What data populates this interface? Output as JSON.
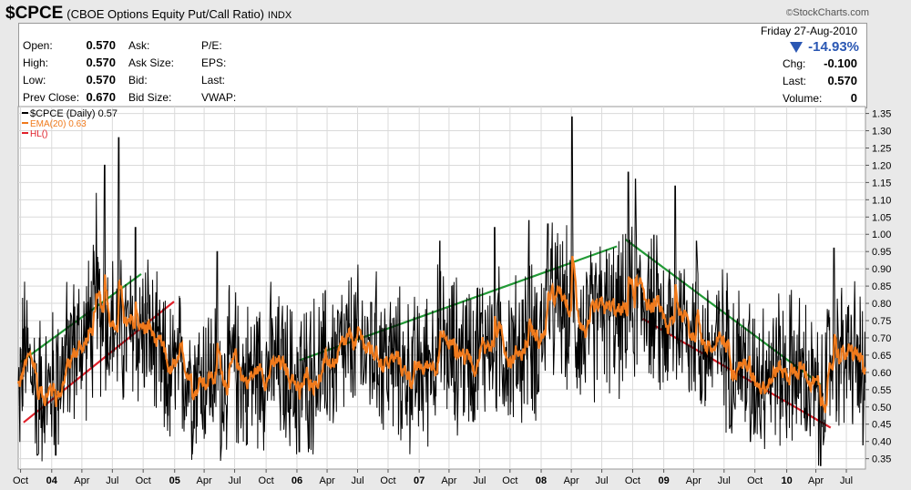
{
  "header": {
    "symbol": "$CPCE",
    "name": "(CBOE Options Equity Put/Call Ratio)",
    "exchange": "INDX",
    "brand": "StockCharts.com",
    "brand_mark": "©"
  },
  "quote": {
    "left": [
      {
        "label": "Open:",
        "value": "0.570"
      },
      {
        "label": "High:",
        "value": "0.570"
      },
      {
        "label": "Low:",
        "value": "0.570"
      },
      {
        "label": "Prev Close:",
        "value": "0.670"
      }
    ],
    "mid": [
      "Ask:",
      "Ask Size:",
      "Bid:",
      "Bid Size:"
    ],
    "fund": [
      "P/E:",
      "EPS:",
      "Last:",
      "VWAP:"
    ],
    "date": "Friday  27-Aug-2010",
    "pct_change": "-14.93%",
    "right": [
      {
        "label": "Chg:",
        "value": "-0.100"
      },
      {
        "label": "Last:",
        "value": "0.570"
      },
      {
        "label": "Volume:",
        "value": "0"
      }
    ]
  },
  "legend": [
    {
      "text": "$CPCE (Daily) 0.57",
      "color": "#000000"
    },
    {
      "text": "EMA(20) 0.63",
      "color": "#f07a1c"
    },
    {
      "text": "HL()",
      "color": "#e0202a"
    }
  ],
  "colors": {
    "price": "#000000",
    "ema": "#f07a1c",
    "hl_red": "#e0202a",
    "hl_green": "#229a36",
    "down": "#2a57b3"
  },
  "chart_data": {
    "type": "line",
    "y_ticks": [
      "0.35",
      "0.40",
      "0.45",
      "0.50",
      "0.55",
      "0.60",
      "0.65",
      "0.70",
      "0.75",
      "0.80",
      "0.85",
      "0.90",
      "0.95",
      "1.00",
      "1.05",
      "1.10",
      "1.15",
      "1.20",
      "1.25",
      "1.30",
      "1.35"
    ],
    "ylim": [
      0.32,
      1.37
    ],
    "x_range": [
      "2003-09-24",
      "2010-08-27"
    ],
    "x_ticks": [
      {
        "date": "2003-10-01",
        "label": "Oct",
        "bold": false
      },
      {
        "date": "2004-01-02",
        "label": "04",
        "bold": true
      },
      {
        "date": "2004-04-01",
        "label": "Apr",
        "bold": false
      },
      {
        "date": "2004-07-01",
        "label": "Jul",
        "bold": false
      },
      {
        "date": "2004-10-01",
        "label": "Oct",
        "bold": false
      },
      {
        "date": "2005-01-03",
        "label": "05",
        "bold": true
      },
      {
        "date": "2005-04-01",
        "label": "Apr",
        "bold": false
      },
      {
        "date": "2005-07-01",
        "label": "Jul",
        "bold": false
      },
      {
        "date": "2005-10-03",
        "label": "Oct",
        "bold": false
      },
      {
        "date": "2006-01-03",
        "label": "06",
        "bold": true
      },
      {
        "date": "2006-04-03",
        "label": "Apr",
        "bold": false
      },
      {
        "date": "2006-07-03",
        "label": "Jul",
        "bold": false
      },
      {
        "date": "2006-10-02",
        "label": "Oct",
        "bold": false
      },
      {
        "date": "2007-01-03",
        "label": "07",
        "bold": true
      },
      {
        "date": "2007-04-02",
        "label": "Apr",
        "bold": false
      },
      {
        "date": "2007-07-02",
        "label": "Jul",
        "bold": false
      },
      {
        "date": "2007-10-01",
        "label": "Oct",
        "bold": false
      },
      {
        "date": "2008-01-02",
        "label": "08",
        "bold": true
      },
      {
        "date": "2008-04-01",
        "label": "Apr",
        "bold": false
      },
      {
        "date": "2008-07-01",
        "label": "Jul",
        "bold": false
      },
      {
        "date": "2008-10-01",
        "label": "Oct",
        "bold": false
      },
      {
        "date": "2009-01-02",
        "label": "09",
        "bold": true
      },
      {
        "date": "2009-04-01",
        "label": "Apr",
        "bold": false
      },
      {
        "date": "2009-07-01",
        "label": "Jul",
        "bold": false
      },
      {
        "date": "2009-10-01",
        "label": "Oct",
        "bold": false
      },
      {
        "date": "2010-01-04",
        "label": "10",
        "bold": true
      },
      {
        "date": "2010-04-01",
        "label": "Apr",
        "bold": false
      },
      {
        "date": "2010-07-01",
        "label": "Jul",
        "bold": false
      }
    ],
    "ratio_anchors": [
      [
        "2003-09-24",
        0.52
      ],
      [
        "2003-10-10",
        0.66
      ],
      [
        "2003-11-15",
        0.58
      ],
      [
        "2003-12-20",
        0.54
      ],
      [
        "2004-01-25",
        0.6
      ],
      [
        "2004-03-01",
        0.66
      ],
      [
        "2004-04-10",
        0.7
      ],
      [
        "2004-05-20",
        0.77
      ],
      [
        "2004-06-25",
        0.73
      ],
      [
        "2004-08-01",
        0.7
      ],
      [
        "2004-09-05",
        0.71
      ],
      [
        "2004-10-10",
        0.73
      ],
      [
        "2004-11-15",
        0.62
      ],
      [
        "2004-12-20",
        0.58
      ],
      [
        "2005-01-25",
        0.62
      ],
      [
        "2005-03-01",
        0.58
      ],
      [
        "2005-04-10",
        0.61
      ],
      [
        "2005-05-20",
        0.56
      ],
      [
        "2005-06-25",
        0.62
      ],
      [
        "2005-08-01",
        0.58
      ],
      [
        "2005-09-05",
        0.61
      ],
      [
        "2005-10-10",
        0.62
      ],
      [
        "2005-11-15",
        0.6
      ],
      [
        "2005-12-20",
        0.58
      ],
      [
        "2006-01-25",
        0.58
      ],
      [
        "2006-03-01",
        0.6
      ],
      [
        "2006-04-10",
        0.63
      ],
      [
        "2006-05-20",
        0.66
      ],
      [
        "2006-06-25",
        0.68
      ],
      [
        "2006-08-01",
        0.66
      ],
      [
        "2006-09-05",
        0.65
      ],
      [
        "2006-10-10",
        0.63
      ],
      [
        "2006-11-15",
        0.6
      ],
      [
        "2006-12-20",
        0.59
      ],
      [
        "2007-01-25",
        0.62
      ],
      [
        "2007-03-01",
        0.69
      ],
      [
        "2007-04-10",
        0.66
      ],
      [
        "2007-05-20",
        0.65
      ],
      [
        "2007-06-25",
        0.67
      ],
      [
        "2007-08-01",
        0.7
      ],
      [
        "2007-09-05",
        0.68
      ],
      [
        "2007-10-10",
        0.64
      ],
      [
        "2007-11-15",
        0.7
      ],
      [
        "2007-12-20",
        0.69
      ],
      [
        "2008-01-25",
        0.79
      ],
      [
        "2008-03-01",
        0.8
      ],
      [
        "2008-04-10",
        0.74
      ],
      [
        "2008-05-20",
        0.71
      ],
      [
        "2008-06-25",
        0.78
      ],
      [
        "2008-08-01",
        0.76
      ],
      [
        "2008-09-05",
        0.76
      ],
      [
        "2008-10-10",
        0.8
      ],
      [
        "2008-11-15",
        0.82
      ],
      [
        "2008-12-20",
        0.74
      ],
      [
        "2009-01-25",
        0.72
      ],
      [
        "2009-03-01",
        0.77
      ],
      [
        "2009-04-10",
        0.7
      ],
      [
        "2009-05-20",
        0.66
      ],
      [
        "2009-06-25",
        0.68
      ],
      [
        "2009-08-01",
        0.65
      ],
      [
        "2009-09-05",
        0.62
      ],
      [
        "2009-10-10",
        0.6
      ],
      [
        "2009-11-15",
        0.62
      ],
      [
        "2009-12-20",
        0.6
      ],
      [
        "2010-01-25",
        0.62
      ],
      [
        "2010-03-01",
        0.58
      ],
      [
        "2010-04-10",
        0.52
      ],
      [
        "2010-05-20",
        0.63
      ],
      [
        "2010-06-25",
        0.65
      ],
      [
        "2010-08-01",
        0.64
      ],
      [
        "2010-08-27",
        0.57
      ]
    ],
    "series": [
      {
        "name": "$CPCE (Daily)",
        "color": "#000000"
      },
      {
        "name": "EMA(20)",
        "color": "#f07a1c",
        "period": 20
      }
    ],
    "trendlines": [
      {
        "color": "#229a36",
        "from": [
          "2003-10-01",
          0.63
        ],
        "to": [
          "2004-09-25",
          0.885
        ]
      },
      {
        "color": "#e0202a",
        "from": [
          "2003-10-10",
          0.455
        ],
        "to": [
          "2005-01-01",
          0.805
        ]
      },
      {
        "color": "#229a36",
        "from": [
          "2006-01-10",
          0.635
        ],
        "to": [
          "2008-08-15",
          0.965
        ]
      },
      {
        "color": "#229a36",
        "from": [
          "2008-09-10",
          0.985
        ],
        "to": [
          "2010-04-15",
          0.565
        ]
      },
      {
        "color": "#e0202a",
        "from": [
          "2008-11-01",
          0.755
        ],
        "to": [
          "2010-05-15",
          0.44
        ]
      }
    ]
  }
}
